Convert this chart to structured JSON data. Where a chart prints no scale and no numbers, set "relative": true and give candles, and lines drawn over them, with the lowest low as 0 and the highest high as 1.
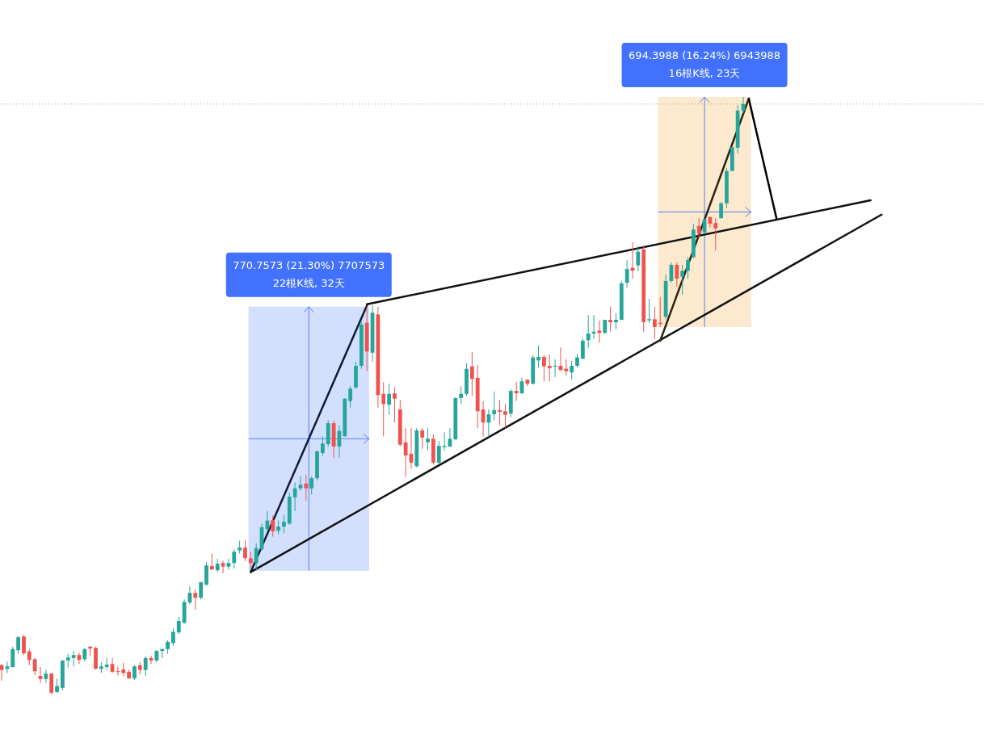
{
  "chart_data": {
    "type": "candlestick",
    "relative": true,
    "categories": [
      null,
      null,
      null,
      null,
      null,
      null,
      null,
      null,
      null,
      null,
      null,
      null,
      null,
      null,
      null,
      null,
      null,
      null,
      null,
      null,
      null,
      null,
      null,
      null,
      null,
      null,
      null,
      null,
      null,
      null,
      null,
      null,
      null,
      null,
      null,
      null,
      null,
      null,
      null,
      null,
      null,
      null,
      null,
      null,
      null,
      null,
      null,
      null,
      null,
      null,
      null,
      null,
      null,
      null,
      null,
      null,
      null,
      null,
      null,
      null,
      null,
      null,
      null,
      null,
      null,
      null,
      null,
      null,
      null,
      null,
      null,
      null,
      null,
      null,
      null,
      null,
      null,
      null,
      null,
      null,
      null,
      null,
      null,
      null,
      null,
      null,
      null,
      null,
      null,
      null,
      null,
      null,
      null,
      null,
      null,
      null,
      null,
      null,
      null,
      null,
      null,
      null,
      null,
      null,
      null,
      null,
      null,
      null,
      null,
      null,
      null,
      null,
      null,
      null,
      null,
      null,
      null,
      null,
      null,
      null,
      null,
      null,
      null,
      null,
      null,
      null,
      null,
      null,
      null,
      null,
      null,
      null,
      null,
      null,
      null,
      null,
      null,
      null,
      null,
      null,
      null,
      null,
      null,
      null,
      null,
      null,
      null,
      null,
      null,
      null,
      null,
      null,
      null,
      null,
      null,
      null,
      null,
      null,
      null,
      null
    ],
    "ohlc": [
      [
        0.049,
        0.051,
        0.023,
        0.041
      ],
      [
        0.043,
        0.055,
        0.036,
        0.047
      ],
      [
        0.046,
        0.08,
        0.045,
        0.076
      ],
      [
        0.074,
        0.097,
        0.068,
        0.096
      ],
      [
        0.097,
        0.1,
        0.066,
        0.069
      ],
      [
        0.072,
        0.076,
        0.049,
        0.058
      ],
      [
        0.059,
        0.061,
        0.032,
        0.039
      ],
      [
        0.031,
        0.046,
        0.019,
        0.026
      ],
      [
        0.026,
        0.041,
        0.019,
        0.035
      ],
      [
        0.035,
        0.036,
        0,
        0.003
      ],
      [
        0.004,
        0.027,
        0.003,
        0.014
      ],
      [
        0.011,
        0.057,
        0.007,
        0.057
      ],
      [
        0.057,
        0.068,
        0.045,
        0.062
      ],
      [
        0.061,
        0.073,
        0.047,
        0.066
      ],
      [
        0.066,
        0.07,
        0.051,
        0.058
      ],
      [
        0.059,
        0.078,
        0.055,
        0.076
      ],
      [
        0.08,
        0.081,
        0.064,
        0.077
      ],
      [
        0.078,
        0.08,
        0.042,
        0.043
      ],
      [
        0.043,
        0.054,
        0.036,
        0.047
      ],
      [
        0.046,
        0.061,
        0.041,
        0.05
      ],
      [
        0.051,
        0.061,
        0.036,
        0.038
      ],
      [
        0.039,
        0.047,
        0.032,
        0.038
      ],
      [
        0.042,
        0.053,
        0.031,
        0.036
      ],
      [
        0.038,
        0.042,
        0.026,
        0.027
      ],
      [
        0.027,
        0.049,
        0.024,
        0.047
      ],
      [
        0.049,
        0.054,
        0.034,
        0.041
      ],
      [
        0.041,
        0.064,
        0.031,
        0.061
      ],
      [
        0.061,
        0.065,
        0.051,
        0.057
      ],
      [
        0.057,
        0.074,
        0.054,
        0.073
      ],
      [
        0.073,
        0.077,
        0.061,
        0.076
      ],
      [
        0.076,
        0.091,
        0.068,
        0.088
      ],
      [
        0.086,
        0.111,
        0.081,
        0.105
      ],
      [
        0.104,
        0.13,
        0.101,
        0.123
      ],
      [
        0.12,
        0.159,
        0.118,
        0.155
      ],
      [
        0.154,
        0.181,
        0.151,
        0.17
      ],
      [
        0.17,
        0.176,
        0.142,
        0.162
      ],
      [
        0.162,
        0.188,
        0.159,
        0.188
      ],
      [
        0.184,
        0.222,
        0.182,
        0.216
      ],
      [
        0.215,
        0.236,
        0.209,
        0.209
      ],
      [
        0.208,
        0.227,
        0.205,
        0.219
      ],
      [
        0.22,
        0.224,
        0.203,
        0.214
      ],
      [
        0.214,
        0.227,
        0.209,
        0.22
      ],
      [
        0.22,
        0.243,
        0.211,
        0.239
      ],
      [
        0.241,
        0.257,
        0.236,
        0.246
      ],
      [
        0.246,
        0.258,
        0.223,
        0.228
      ],
      [
        0.228,
        0.239,
        0.212,
        0.22
      ],
      [
        0.22,
        0.253,
        0.207,
        0.245
      ],
      [
        0.243,
        0.286,
        0.241,
        0.28
      ],
      [
        0.277,
        0.307,
        0.273,
        0.291
      ],
      [
        0.292,
        0.3,
        0.264,
        0.273
      ],
      [
        0.274,
        0.291,
        0.268,
        0.281
      ],
      [
        0.281,
        0.301,
        0.27,
        0.289
      ],
      [
        0.286,
        0.338,
        0.284,
        0.331
      ],
      [
        0.33,
        0.355,
        0.307,
        0.345
      ],
      [
        0.345,
        0.365,
        0.341,
        0.351
      ],
      [
        0.353,
        0.368,
        0.324,
        0.345
      ],
      [
        0.345,
        0.365,
        0.335,
        0.362
      ],
      [
        0.362,
        0.408,
        0.358,
        0.407
      ],
      [
        0.404,
        0.432,
        0.399,
        0.42
      ],
      [
        0.419,
        0.459,
        0.415,
        0.454
      ],
      [
        0.454,
        0.459,
        0.396,
        0.415
      ],
      [
        0.415,
        0.45,
        0.396,
        0.441
      ],
      [
        0.432,
        0.496,
        0.432,
        0.495
      ],
      [
        0.491,
        0.516,
        0.48,
        0.512
      ],
      [
        0.514,
        0.557,
        0.511,
        0.55
      ],
      [
        0.55,
        0.624,
        0.545,
        0.619
      ],
      [
        0.622,
        0.649,
        0.541,
        0.574
      ],
      [
        0.572,
        0.651,
        0.557,
        0.639
      ],
      [
        0.636,
        0.649,
        0.48,
        0.501
      ],
      [
        0.503,
        0.523,
        0.432,
        0.486
      ],
      [
        0.485,
        0.52,
        0.468,
        0.503
      ],
      [
        0.504,
        0.514,
        0.455,
        0.495
      ],
      [
        0.477,
        0.493,
        0.415,
        0.418
      ],
      [
        0.422,
        0.446,
        0.364,
        0.4
      ],
      [
        0.403,
        0.446,
        0.378,
        0.388
      ],
      [
        0.382,
        0.446,
        0.38,
        0.442
      ],
      [
        0.442,
        0.446,
        0.411,
        0.43
      ],
      [
        0.422,
        0.446,
        0.409,
        0.428
      ],
      [
        0.428,
        0.435,
        0.385,
        0.388
      ],
      [
        0.388,
        0.424,
        0.385,
        0.416
      ],
      [
        0.414,
        0.439,
        0.408,
        0.416
      ],
      [
        0.415,
        0.446,
        0.414,
        0.428
      ],
      [
        0.427,
        0.497,
        0.426,
        0.496
      ],
      [
        0.496,
        0.516,
        0.486,
        0.503
      ],
      [
        0.503,
        0.554,
        0.5,
        0.545
      ],
      [
        0.549,
        0.573,
        0.5,
        0.528
      ],
      [
        0.53,
        0.551,
        0.446,
        0.474
      ],
      [
        0.477,
        0.491,
        0.432,
        0.455
      ],
      [
        0.455,
        0.477,
        0.431,
        0.469
      ],
      [
        0.469,
        0.507,
        0.459,
        0.476
      ],
      [
        0.476,
        0.493,
        0.45,
        0.473
      ],
      [
        0.474,
        0.486,
        0.446,
        0.468
      ],
      [
        0.47,
        0.511,
        0.464,
        0.508
      ],
      [
        0.508,
        0.523,
        0.491,
        0.504
      ],
      [
        0.504,
        0.53,
        0.503,
        0.524
      ],
      [
        0.527,
        0.527,
        0.516,
        0.52
      ],
      [
        0.52,
        0.568,
        0.519,
        0.564
      ],
      [
        0.559,
        0.584,
        0.547,
        0.565
      ],
      [
        0.565,
        0.568,
        0.524,
        0.549
      ],
      [
        0.55,
        0.569,
        0.524,
        0.546
      ],
      [
        0.549,
        0.561,
        0.531,
        0.55
      ],
      [
        0.55,
        0.581,
        0.541,
        0.543
      ],
      [
        0.545,
        0.561,
        0.534,
        0.541
      ],
      [
        0.539,
        0.558,
        0.527,
        0.55
      ],
      [
        0.55,
        0.57,
        0.547,
        0.564
      ],
      [
        0.562,
        0.596,
        0.561,
        0.592
      ],
      [
        0.593,
        0.635,
        0.58,
        0.604
      ],
      [
        0.604,
        0.635,
        0.595,
        0.607
      ],
      [
        0.609,
        0.626,
        0.588,
        0.605
      ],
      [
        0.605,
        0.627,
        0.604,
        0.627
      ],
      [
        0.627,
        0.649,
        0.607,
        0.623
      ],
      [
        0.623,
        0.638,
        0.611,
        0.627
      ],
      [
        0.627,
        0.692,
        0.627,
        0.688
      ],
      [
        0.689,
        0.727,
        0.681,
        0.712
      ],
      [
        0.714,
        0.757,
        0.696,
        0.709
      ],
      [
        0.718,
        0.751,
        0.708,
        0.741
      ],
      [
        0.745,
        0.751,
        0.607,
        0.623
      ],
      [
        0.626,
        0.662,
        0.622,
        0.628
      ],
      [
        0.628,
        0.649,
        0.595,
        0.615
      ],
      [
        0.622,
        0.665,
        0.615,
        0.62
      ],
      [
        0.632,
        0.703,
        0.628,
        0.692
      ],
      [
        0.692,
        0.723,
        0.689,
        0.719
      ],
      [
        0.719,
        0.723,
        0.682,
        0.696
      ],
      [
        0.699,
        0.719,
        0.669,
        0.709
      ],
      [
        0.709,
        0.732,
        0.696,
        0.727
      ],
      [
        0.732,
        0.788,
        0.73,
        0.778
      ],
      [
        0.784,
        0.797,
        0.764,
        0.772
      ],
      [
        0.773,
        0.797,
        0.77,
        0.795
      ],
      [
        0.799,
        0.8,
        0.781,
        0.788
      ],
      [
        0.789,
        0.797,
        0.743,
        0.78
      ],
      [
        0.797,
        0.824,
        0.797,
        0.822
      ],
      [
        0.822,
        0.881,
        0.814,
        0.876
      ],
      [
        0.876,
        0.916,
        0.876,
        0.916
      ],
      [
        0.915,
        0.986,
        0.905,
        0.977
      ],
      [
        0.977,
        1,
        0.973,
        0.988
      ],
      null,
      null,
      null,
      null,
      null,
      null,
      null,
      null,
      null,
      null,
      null,
      null,
      null,
      null,
      null,
      null,
      null,
      null,
      null,
      null,
      null,
      null,
      null,
      null,
      null
    ],
    "series": [
      {
        "type": "line",
        "color": "#111111",
        "values": [
          null,
          null,
          null,
          null,
          null,
          null,
          null,
          null,
          null,
          null,
          null,
          null,
          null,
          null,
          null,
          null,
          null,
          null,
          null,
          null,
          null,
          null,
          null,
          null,
          null,
          null,
          null,
          null,
          null,
          null,
          null,
          null,
          null,
          null,
          null,
          null,
          null,
          null,
          null,
          null,
          null,
          null,
          null,
          null,
          null,
          null,
          null,
          null,
          null,
          null,
          null,
          null,
          null,
          null,
          null,
          null,
          null,
          null,
          null,
          null,
          null,
          null,
          null,
          null,
          null,
          null,
          0.653,
          null,
          null,
          null,
          null,
          null,
          null,
          null,
          null,
          null,
          null,
          null,
          null,
          null,
          null,
          null,
          null,
          null,
          null,
          null,
          null,
          null,
          null,
          null,
          null,
          null,
          null,
          null,
          null,
          null,
          null,
          null,
          null,
          null,
          null,
          null,
          null,
          null,
          null,
          null,
          null,
          null,
          null,
          null,
          null,
          null,
          null,
          null,
          null,
          null,
          null,
          null,
          null,
          null,
          null,
          null,
          null,
          null,
          null,
          null,
          null,
          null,
          null,
          null,
          null,
          null,
          null,
          null,
          null,
          null,
          null,
          null,
          null,
          null,
          null,
          null,
          null,
          null,
          null,
          null,
          null,
          null,
          null,
          null,
          null,
          null,
          null,
          null,
          null,
          null,
          null,
          0.827,
          null,
          null
        ]
      },
      {
        "type": "line",
        "color": "#111111",
        "values": [
          null,
          null,
          null,
          null,
          null,
          null,
          null,
          null,
          null,
          null,
          null,
          null,
          null,
          null,
          null,
          null,
          null,
          null,
          null,
          null,
          null,
          null,
          null,
          null,
          null,
          null,
          null,
          null,
          null,
          null,
          null,
          null,
          null,
          null,
          null,
          null,
          null,
          null,
          null,
          null,
          null,
          null,
          null,
          null,
          null,
          0.205,
          null,
          null,
          null,
          null,
          null,
          null,
          null,
          null,
          null,
          null,
          null,
          null,
          null,
          null,
          null,
          null,
          null,
          null,
          null,
          null,
          null,
          null,
          null,
          null,
          null,
          null,
          null,
          null,
          null,
          null,
          null,
          null,
          null,
          null,
          null,
          null,
          null,
          null,
          null,
          null,
          null,
          null,
          null,
          null,
          null,
          null,
          null,
          null,
          null,
          null,
          null,
          null,
          null,
          null,
          null,
          null,
          null,
          null,
          null,
          null,
          null,
          null,
          null,
          null,
          null,
          null,
          null,
          null,
          null,
          null,
          null,
          null,
          null,
          null,
          null,
          null,
          null,
          null,
          null,
          null,
          null,
          null,
          null,
          null,
          null,
          null,
          null,
          null,
          null,
          null,
          null,
          null,
          null,
          null,
          null,
          null,
          null,
          null,
          null,
          null,
          null,
          null,
          null,
          null,
          null,
          null,
          null,
          null,
          null,
          null,
          null,
          null,
          null,
          0.803
        ]
      },
      {
        "type": "line",
        "color": "#131a33",
        "values": [
          null,
          null,
          null,
          null,
          null,
          null,
          null,
          null,
          null,
          null,
          null,
          null,
          null,
          null,
          null,
          null,
          null,
          null,
          null,
          null,
          null,
          null,
          null,
          null,
          null,
          null,
          null,
          null,
          null,
          null,
          null,
          null,
          null,
          null,
          null,
          null,
          null,
          null,
          null,
          null,
          null,
          null,
          null,
          null,
          null,
          0.205,
          null,
          null,
          null,
          null,
          null,
          null,
          null,
          null,
          null,
          null,
          null,
          null,
          null,
          null,
          null,
          null,
          null,
          null,
          null,
          null,
          0.651,
          null,
          null,
          null,
          null,
          null,
          null,
          null,
          null,
          null,
          null,
          null,
          null,
          null,
          null,
          null,
          null,
          null,
          null,
          null,
          null,
          null,
          null,
          null,
          null,
          null,
          null,
          null,
          null,
          null,
          null,
          null,
          null,
          null,
          null,
          null,
          null,
          null,
          null,
          null,
          null,
          null,
          null,
          null,
          null,
          null,
          null,
          null,
          null,
          null,
          null,
          null,
          null,
          null,
          null,
          null,
          null,
          null,
          null,
          null,
          null,
          null,
          null,
          null,
          null,
          null,
          null,
          null,
          null,
          null,
          null,
          null,
          null,
          null,
          null,
          null,
          null,
          null,
          null,
          null,
          null,
          null,
          null,
          null,
          null,
          null,
          null,
          null,
          null,
          null,
          null,
          null,
          null,
          null
        ]
      },
      {
        "type": "line",
        "color": "#2b2210",
        "values": [
          null,
          null,
          null,
          null,
          null,
          null,
          null,
          null,
          null,
          null,
          null,
          null,
          null,
          null,
          null,
          null,
          null,
          null,
          null,
          null,
          null,
          null,
          null,
          null,
          null,
          null,
          null,
          null,
          null,
          null,
          null,
          null,
          null,
          null,
          null,
          null,
          null,
          null,
          null,
          null,
          null,
          null,
          null,
          null,
          null,
          null,
          null,
          null,
          null,
          null,
          null,
          null,
          null,
          null,
          null,
          null,
          null,
          null,
          null,
          null,
          null,
          null,
          null,
          null,
          null,
          null,
          null,
          null,
          null,
          null,
          null,
          null,
          null,
          null,
          null,
          null,
          null,
          null,
          null,
          null,
          null,
          null,
          null,
          null,
          null,
          null,
          null,
          null,
          null,
          null,
          null,
          null,
          null,
          null,
          null,
          null,
          null,
          null,
          null,
          null,
          null,
          null,
          null,
          null,
          null,
          null,
          null,
          null,
          null,
          null,
          null,
          null,
          null,
          null,
          null,
          null,
          null,
          null,
          null,
          0.592,
          null,
          null,
          null,
          null,
          null,
          null,
          null,
          null,
          null,
          null,
          null,
          null,
          null,
          null,
          null,
          0.997,
          null,
          null,
          null,
          null,
          null,
          null,
          null,
          null,
          null,
          null,
          null,
          null,
          null,
          null,
          null,
          null,
          null,
          null,
          null,
          null,
          null,
          null,
          null,
          null
        ]
      },
      {
        "type": "line",
        "color": "#000000",
        "values": [
          null,
          null,
          null,
          null,
          null,
          null,
          null,
          null,
          null,
          null,
          null,
          null,
          null,
          null,
          null,
          null,
          null,
          null,
          null,
          null,
          null,
          null,
          null,
          null,
          null,
          null,
          null,
          null,
          null,
          null,
          null,
          null,
          null,
          null,
          null,
          null,
          null,
          null,
          null,
          null,
          null,
          null,
          null,
          null,
          null,
          null,
          null,
          null,
          null,
          null,
          null,
          null,
          null,
          null,
          null,
          null,
          null,
          null,
          null,
          null,
          null,
          null,
          null,
          null,
          null,
          null,
          null,
          null,
          null,
          null,
          null,
          null,
          null,
          null,
          null,
          null,
          null,
          null,
          null,
          null,
          null,
          null,
          null,
          null,
          null,
          null,
          null,
          null,
          null,
          null,
          null,
          null,
          null,
          null,
          null,
          null,
          null,
          null,
          null,
          null,
          null,
          null,
          null,
          null,
          null,
          null,
          null,
          null,
          null,
          null,
          null,
          null,
          null,
          null,
          null,
          null,
          null,
          null,
          null,
          null,
          null,
          null,
          null,
          null,
          null,
          null,
          null,
          null,
          null,
          null,
          null,
          null,
          null,
          null,
          null,
          0.997,
          null,
          null,
          null,
          null,
          0.797,
          null,
          null,
          null,
          null,
          null,
          null,
          null,
          null,
          null,
          null,
          null,
          null,
          null,
          null,
          null,
          null,
          null,
          null,
          null
        ]
      }
    ],
    "annotations": [
      "770.7573 (21.30%) 7707573",
      "22根K线, 32天",
      "694.3988 (16.24%) 6943988",
      "16根K线, 23天"
    ],
    "ref_lines": [
      {
        "axis": "y",
        "value": 0.988,
        "line_style": "dotted",
        "color": "#7f9f9f"
      }
    ]
  }
}
